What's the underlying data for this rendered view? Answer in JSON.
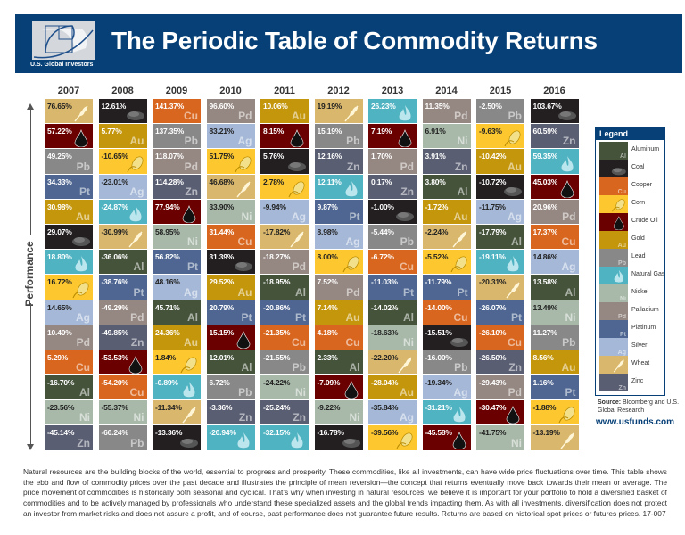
{
  "header": {
    "title": "The Periodic Table of Commodity Returns",
    "logo_text": "U.S. Global Investors",
    "brand_color": "#064077"
  },
  "axis_label": "Performance",
  "legend": {
    "title": "Legend",
    "items": [
      {
        "key": "Al",
        "name": "Aluminum",
        "color": "#45533b",
        "symbol": "Al",
        "icon": ""
      },
      {
        "key": "Coal",
        "name": "Coal",
        "color": "#231f20",
        "symbol": "",
        "icon": "coal-icon"
      },
      {
        "key": "Cu",
        "name": "Copper",
        "color": "#d9661f",
        "symbol": "Cu",
        "icon": ""
      },
      {
        "key": "Corn",
        "name": "Corn",
        "color": "#fdc82f",
        "symbol": "",
        "icon": "corn-icon"
      },
      {
        "key": "Oil",
        "name": "Crude Oil",
        "color": "#6b0000",
        "symbol": "",
        "icon": "oil-drop-icon"
      },
      {
        "key": "Au",
        "name": "Gold",
        "color": "#c4960c",
        "symbol": "Au",
        "icon": ""
      },
      {
        "key": "Pb",
        "name": "Lead",
        "color": "#888888",
        "symbol": "Pb",
        "icon": ""
      },
      {
        "key": "NG",
        "name": "Natural Gas",
        "color": "#4fb3c2",
        "symbol": "",
        "icon": "flame-icon"
      },
      {
        "key": "Ni",
        "name": "Nickel",
        "color": "#a8b9a9",
        "symbol": "Ni",
        "icon": ""
      },
      {
        "key": "Pd",
        "name": "Palladium",
        "color": "#958781",
        "symbol": "Pd",
        "icon": ""
      },
      {
        "key": "Pt",
        "name": "Platinum",
        "color": "#4e6691",
        "symbol": "Pt",
        "icon": ""
      },
      {
        "key": "Ag",
        "name": "Silver",
        "color": "#a5b8d8",
        "symbol": "Ag",
        "icon": ""
      },
      {
        "key": "Wheat",
        "name": "Wheat",
        "color": "#d9b76c",
        "symbol": "",
        "icon": "wheat-icon"
      },
      {
        "key": "Zn",
        "name": "Zinc",
        "color": "#5a5e72",
        "symbol": "Zn",
        "icon": ""
      }
    ]
  },
  "source": {
    "label": "Source:",
    "text": "Bloomberg and U.S. Global Research"
  },
  "url": "www.usfunds.com",
  "footnote": "Natural resources are the building blocks of the world, essential to progress and prosperity. These commodities, like all investments, can have wide price fluctuations over time. This table shows the ebb and flow of commodity prices over the past decade and illustrates the principle of mean reversion—the concept that returns eventually move back towards their mean or average. The price movement of commodities is historically both seasonal and cyclical. That’s why when investing in natural resources, we believe it is important for your portfolio to hold a diversified basket of commodities and to be actively managed by professionals who understand these specialized assets and the global trends impacting them. As with all investments, diversification does not protect an investor from market risks and does not assure a profit, and of course, past performance does not guarantee future results. Returns are based on historical spot prices or futures prices. 17-007",
  "chart_data": {
    "type": "table",
    "title": "The Periodic Table of Commodity Returns",
    "ylabel": "Performance",
    "columns": [
      {
        "year": "2007",
        "cells": [
          [
            "76.65%",
            "Wheat"
          ],
          [
            "57.22%",
            "Oil"
          ],
          [
            "49.25%",
            "Pb"
          ],
          [
            "34.33%",
            "Pt"
          ],
          [
            "30.98%",
            "Au"
          ],
          [
            "29.07%",
            "Coal"
          ],
          [
            "18.80%",
            "NG"
          ],
          [
            "16.72%",
            "Corn"
          ],
          [
            "14.65%",
            "Ag"
          ],
          [
            "10.40%",
            "Pd"
          ],
          [
            "5.29%",
            "Cu"
          ],
          [
            "-16.70%",
            "Al"
          ],
          [
            "-23.56%",
            "Ni"
          ],
          [
            "-45.14%",
            "Zn"
          ]
        ]
      },
      {
        "year": "2008",
        "cells": [
          [
            "12.61%",
            "Coal"
          ],
          [
            "5.77%",
            "Au"
          ],
          [
            "-10.65%",
            "Corn"
          ],
          [
            "-23.01%",
            "Ag"
          ],
          [
            "-24.87%",
            "NG"
          ],
          [
            "-30.99%",
            "Wheat"
          ],
          [
            "-36.06%",
            "Al"
          ],
          [
            "-38.76%",
            "Pt"
          ],
          [
            "-49.29%",
            "Pd"
          ],
          [
            "-49.85%",
            "Zn"
          ],
          [
            "-53.53%",
            "Oil"
          ],
          [
            "-54.20%",
            "Cu"
          ],
          [
            "-55.37%",
            "Ni"
          ],
          [
            "-60.24%",
            "Pb"
          ]
        ]
      },
      {
        "year": "2009",
        "cells": [
          [
            "141.37%",
            "Cu"
          ],
          [
            "137.35%",
            "Pb"
          ],
          [
            "118.07%",
            "Pd"
          ],
          [
            "114.28%",
            "Zn"
          ],
          [
            "77.94%",
            "Oil"
          ],
          [
            "58.95%",
            "Ni"
          ],
          [
            "56.82%",
            "Pt"
          ],
          [
            "48.16%",
            "Ag"
          ],
          [
            "45.71%",
            "Al"
          ],
          [
            "24.36%",
            "Au"
          ],
          [
            "1.84%",
            "Corn"
          ],
          [
            "-0.89%",
            "NG"
          ],
          [
            "-11.34%",
            "Wheat"
          ],
          [
            "-13.36%",
            "Coal"
          ]
        ]
      },
      {
        "year": "2010",
        "cells": [
          [
            "96.60%",
            "Pd"
          ],
          [
            "83.21%",
            "Ag"
          ],
          [
            "51.75%",
            "Corn"
          ],
          [
            "46.68%",
            "Wheat"
          ],
          [
            "33.90%",
            "Ni"
          ],
          [
            "31.44%",
            "Cu"
          ],
          [
            "31.39%",
            "Coal"
          ],
          [
            "29.52%",
            "Au"
          ],
          [
            "20.79%",
            "Pt"
          ],
          [
            "15.15%",
            "Oil"
          ],
          [
            "12.01%",
            "Al"
          ],
          [
            "6.72%",
            "Pb"
          ],
          [
            "-3.36%",
            "Zn"
          ],
          [
            "-20.94%",
            "NG"
          ]
        ]
      },
      {
        "year": "2011",
        "cells": [
          [
            "10.06%",
            "Au"
          ],
          [
            "8.15%",
            "Oil"
          ],
          [
            "5.76%",
            "Coal"
          ],
          [
            "2.78%",
            "Corn"
          ],
          [
            "-9.94%",
            "Ag"
          ],
          [
            "-17.82%",
            "Wheat"
          ],
          [
            "-18.27%",
            "Pd"
          ],
          [
            "-18.95%",
            "Al"
          ],
          [
            "-20.86%",
            "Pt"
          ],
          [
            "-21.35%",
            "Cu"
          ],
          [
            "-21.55%",
            "Pb"
          ],
          [
            "-24.22%",
            "Ni"
          ],
          [
            "-25.24%",
            "Zn"
          ],
          [
            "-32.15%",
            "NG"
          ]
        ]
      },
      {
        "year": "2012",
        "cells": [
          [
            "19.19%",
            "Wheat"
          ],
          [
            "15.19%",
            "Pb"
          ],
          [
            "12.16%",
            "Zn"
          ],
          [
            "12.11%",
            "NG"
          ],
          [
            "9.87%",
            "Pt"
          ],
          [
            "8.98%",
            "Ag"
          ],
          [
            "8.00%",
            "Corn"
          ],
          [
            "7.52%",
            "Pd"
          ],
          [
            "7.14%",
            "Au"
          ],
          [
            "4.18%",
            "Cu"
          ],
          [
            "2.33%",
            "Al"
          ],
          [
            "-7.09%",
            "Oil"
          ],
          [
            "-9.22%",
            "Ni"
          ],
          [
            "-16.78%",
            "Coal"
          ]
        ]
      },
      {
        "year": "2013",
        "cells": [
          [
            "26.23%",
            "NG"
          ],
          [
            "7.19%",
            "Oil"
          ],
          [
            "1.70%",
            "Pd"
          ],
          [
            "0.17%",
            "Zn"
          ],
          [
            "-1.00%",
            "Coal"
          ],
          [
            "-5.44%",
            "Pb"
          ],
          [
            "-6.72%",
            "Cu"
          ],
          [
            "-11.03%",
            "Pt"
          ],
          [
            "-14.02%",
            "Al"
          ],
          [
            "-18.63%",
            "Ni"
          ],
          [
            "-22.20%",
            "Wheat"
          ],
          [
            "-28.04%",
            "Au"
          ],
          [
            "-35.84%",
            "Ag"
          ],
          [
            "-39.56%",
            "Corn"
          ]
        ]
      },
      {
        "year": "2014",
        "cells": [
          [
            "11.35%",
            "Pd"
          ],
          [
            "6.91%",
            "Ni"
          ],
          [
            "3.91%",
            "Zn"
          ],
          [
            "3.80%",
            "Al"
          ],
          [
            "-1.72%",
            "Au"
          ],
          [
            "-2.24%",
            "Wheat"
          ],
          [
            "-5.52%",
            "Corn"
          ],
          [
            "-11.79%",
            "Pt"
          ],
          [
            "-14.00%",
            "Cu"
          ],
          [
            "-15.51%",
            "Coal"
          ],
          [
            "-16.00%",
            "Pb"
          ],
          [
            "-19.34%",
            "Ag"
          ],
          [
            "-31.21%",
            "NG"
          ],
          [
            "-45.58%",
            "Oil"
          ]
        ]
      },
      {
        "year": "2015",
        "cells": [
          [
            "-2.50%",
            "Pb"
          ],
          [
            "-9.63%",
            "Corn"
          ],
          [
            "-10.42%",
            "Au"
          ],
          [
            "-10.72%",
            "Coal"
          ],
          [
            "-11.75%",
            "Ag"
          ],
          [
            "-17.79%",
            "Al"
          ],
          [
            "-19.11%",
            "NG"
          ],
          [
            "-20.31%",
            "Wheat"
          ],
          [
            "-26.07%",
            "Pt"
          ],
          [
            "-26.10%",
            "Cu"
          ],
          [
            "-26.50%",
            "Zn"
          ],
          [
            "-29.43%",
            "Pd"
          ],
          [
            "-30.47%",
            "Oil"
          ],
          [
            "-41.75%",
            "Ni"
          ]
        ]
      },
      {
        "year": "2016",
        "cells": [
          [
            "103.67%",
            "Coal"
          ],
          [
            "60.59%",
            "Zn"
          ],
          [
            "59.35%",
            "NG"
          ],
          [
            "45.03%",
            "Oil"
          ],
          [
            "20.96%",
            "Pd"
          ],
          [
            "17.37%",
            "Cu"
          ],
          [
            "14.86%",
            "Ag"
          ],
          [
            "13.58%",
            "Al"
          ],
          [
            "13.49%",
            "Ni"
          ],
          [
            "11.27%",
            "Pb"
          ],
          [
            "8.56%",
            "Au"
          ],
          [
            "1.16%",
            "Pt"
          ],
          [
            "-1.88%",
            "Corn"
          ],
          [
            "-13.19%",
            "Wheat"
          ]
        ]
      }
    ]
  }
}
